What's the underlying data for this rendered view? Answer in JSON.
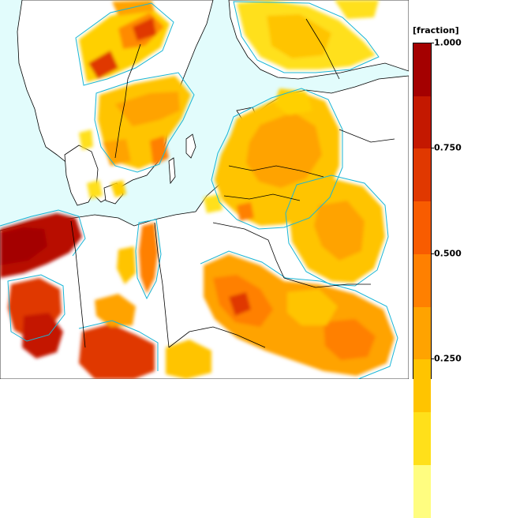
{
  "legend": {
    "unit_label": "[fraction]",
    "ticks": [
      "1.000",
      "0.750",
      "0.500",
      "0.250"
    ],
    "tick_values": [
      1.0,
      0.75,
      0.5,
      0.25
    ],
    "bands": [
      "#fffd80",
      "#ffe01a",
      "#ffc400",
      "#ffa300",
      "#ff8000",
      "#f85c00",
      "#e03800",
      "#c41800",
      "#a40000"
    ]
  },
  "colors": {
    "sea": "#e2fcfc",
    "land": "#ffffff",
    "coast": "#000000",
    "contour": "#19b6d8"
  }
}
